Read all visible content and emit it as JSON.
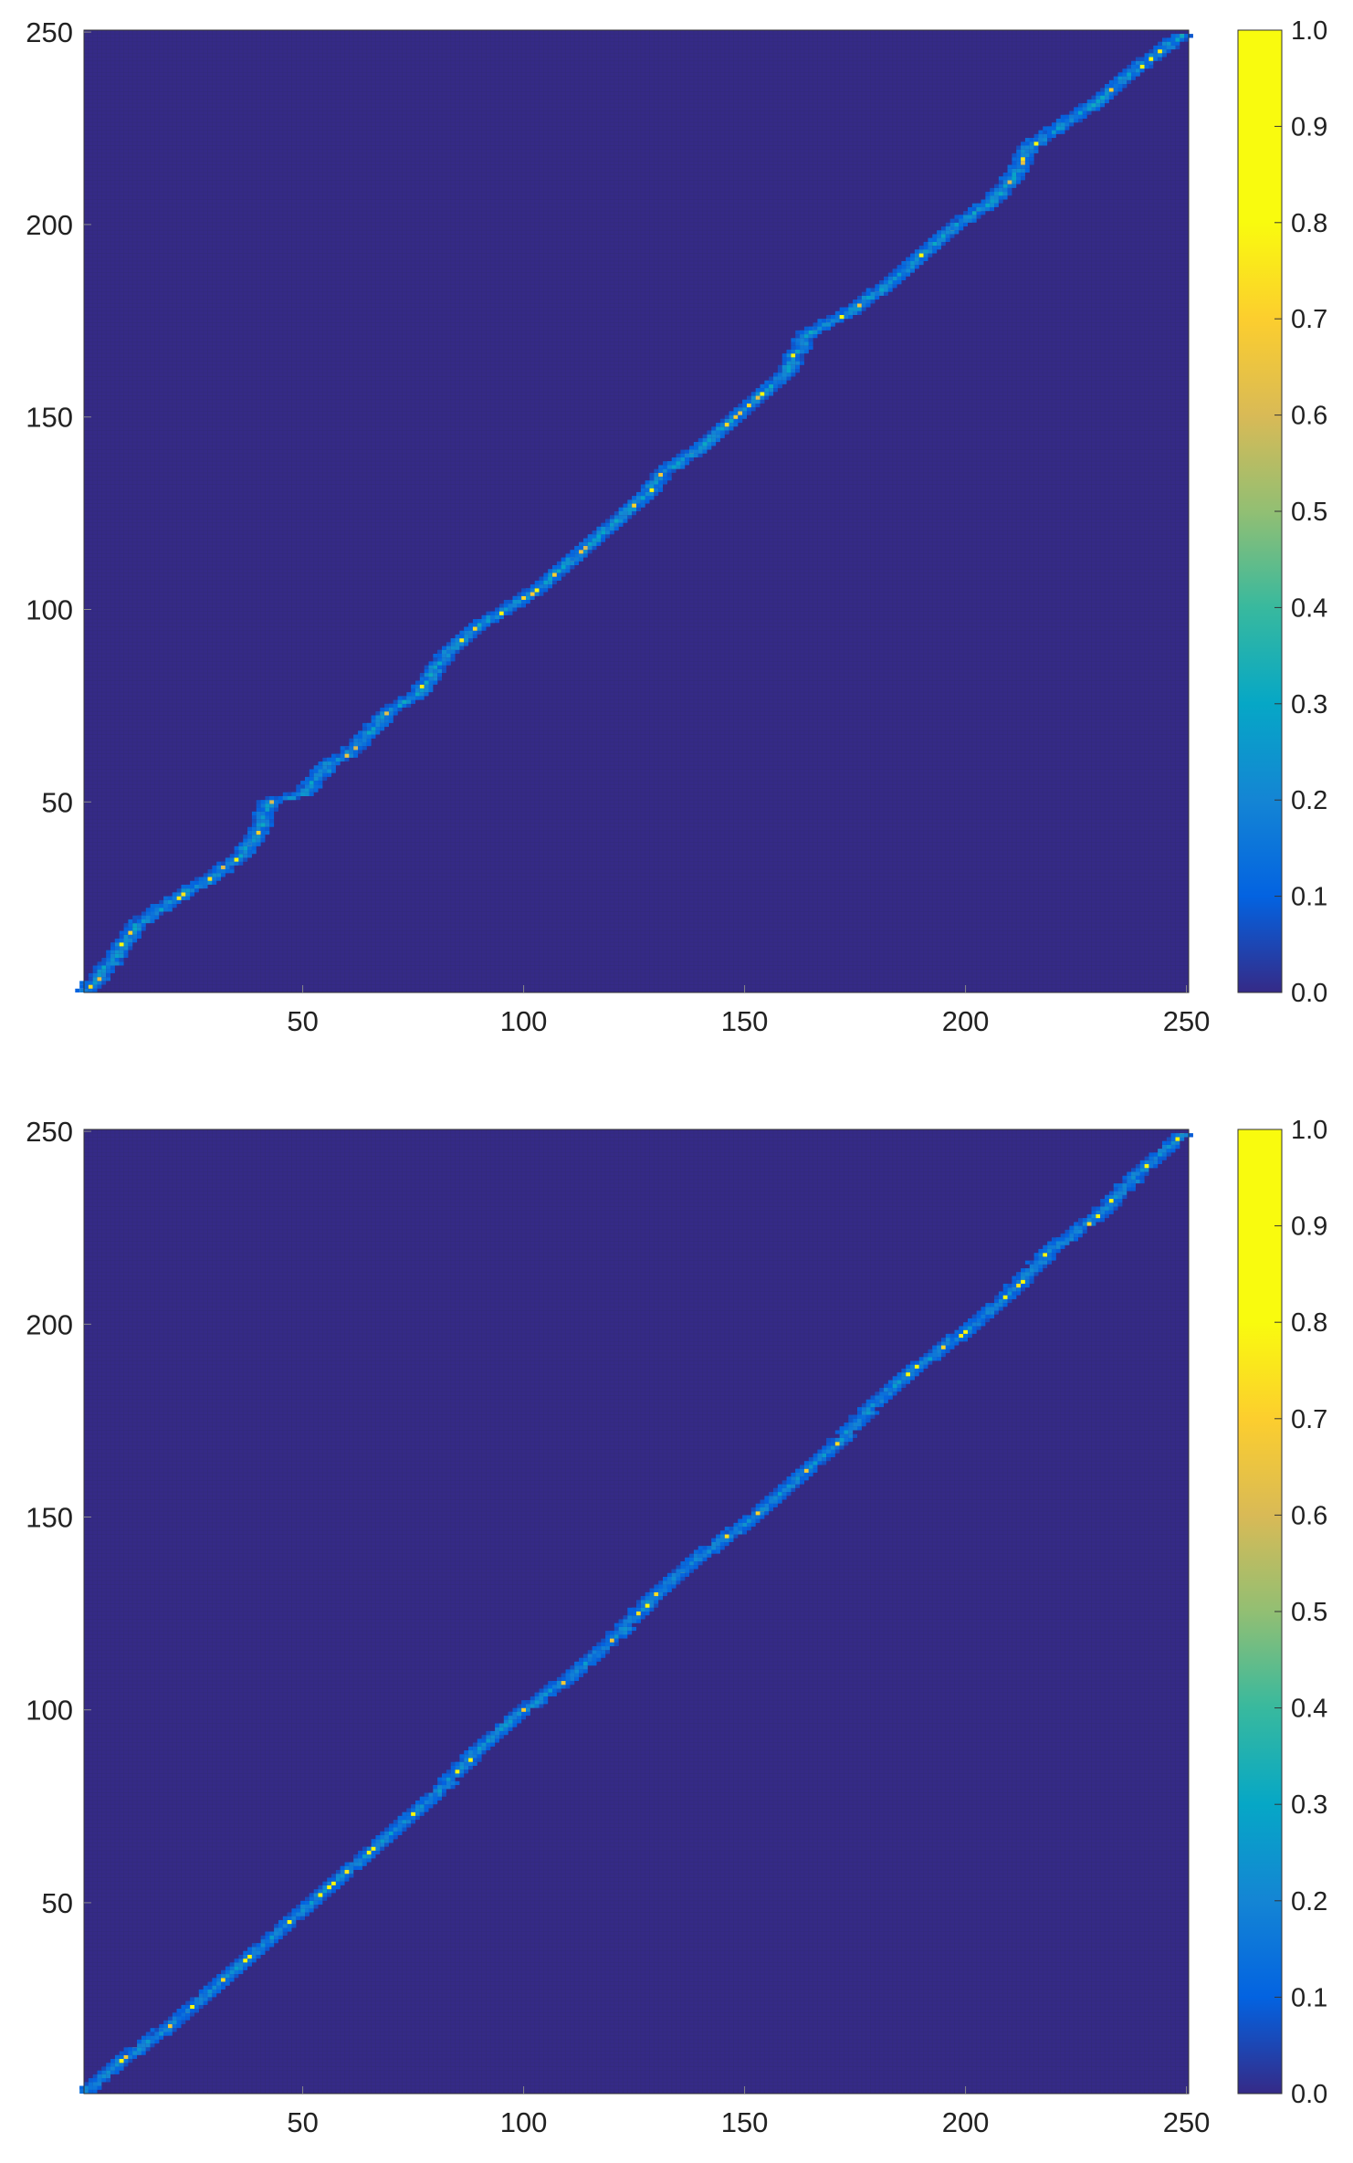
{
  "chart_data": [
    {
      "type": "heatmap",
      "title": "",
      "xlabel": "",
      "ylabel": "",
      "xlim": [
        1,
        250
      ],
      "ylim": [
        1,
        250
      ],
      "x_ticks": [
        50,
        100,
        150,
        200,
        250
      ],
      "y_ticks": [
        50,
        100,
        150,
        200,
        250
      ],
      "colorbar": {
        "min": 0.0,
        "max": 1.0,
        "ticks": [
          "0.0",
          "0.1",
          "0.2",
          "0.3",
          "0.4",
          "0.5",
          "0.6",
          "0.7",
          "0.8",
          "0.9",
          "1.0"
        ]
      },
      "colormap": "parula",
      "background_value": 0.0,
      "ridge": {
        "description": "staircase band of nonzero weights along the diagonal",
        "path": [
          [
            1,
            1
          ],
          [
            8,
            10
          ],
          [
            12,
            18
          ],
          [
            20,
            24
          ],
          [
            30,
            31
          ],
          [
            36,
            36
          ],
          [
            40,
            42
          ],
          [
            42,
            50
          ],
          [
            50,
            52
          ],
          [
            56,
            60
          ],
          [
            60,
            62
          ],
          [
            70,
            74
          ],
          [
            76,
            78
          ],
          [
            82,
            88
          ],
          [
            90,
            96
          ],
          [
            96,
            100
          ],
          [
            104,
            106
          ],
          [
            110,
            112
          ],
          [
            118,
            120
          ],
          [
            122,
            124
          ],
          [
            128,
            130
          ],
          [
            132,
            136
          ],
          [
            140,
            142
          ],
          [
            148,
            150
          ],
          [
            160,
            162
          ],
          [
            164,
            172
          ],
          [
            172,
            176
          ],
          [
            182,
            184
          ],
          [
            190,
            192
          ],
          [
            198,
            200
          ],
          [
            206,
            206
          ],
          [
            212,
            214
          ],
          [
            214,
            220
          ],
          [
            222,
            226
          ],
          [
            230,
            232
          ],
          [
            238,
            240
          ],
          [
            250,
            250
          ]
        ],
        "peak_value": 0.85,
        "typical_value": 0.25
      }
    },
    {
      "type": "heatmap",
      "title": "",
      "xlabel": "",
      "ylabel": "",
      "xlim": [
        1,
        250
      ],
      "ylim": [
        1,
        250
      ],
      "x_ticks": [
        50,
        100,
        150,
        200,
        250
      ],
      "y_ticks": [
        50,
        100,
        150,
        200,
        250
      ],
      "colorbar": {
        "min": 0.0,
        "max": 1.0,
        "ticks": [
          "0.0",
          "0.1",
          "0.2",
          "0.3",
          "0.4",
          "0.5",
          "0.6",
          "0.7",
          "0.8",
          "0.9",
          "1.0"
        ]
      },
      "colormap": "parula",
      "background_value": 0.0,
      "ridge": {
        "description": "smooth band of nonzero weights along the diagonal",
        "path": [
          [
            1,
            1
          ],
          [
            10,
            10
          ],
          [
            20,
            18
          ],
          [
            30,
            28
          ],
          [
            40,
            38
          ],
          [
            50,
            48
          ],
          [
            60,
            58
          ],
          [
            70,
            68
          ],
          [
            80,
            78
          ],
          [
            90,
            90
          ],
          [
            100,
            100
          ],
          [
            110,
            108
          ],
          [
            120,
            118
          ],
          [
            130,
            130
          ],
          [
            140,
            140
          ],
          [
            150,
            148
          ],
          [
            160,
            158
          ],
          [
            170,
            168
          ],
          [
            180,
            180
          ],
          [
            190,
            190
          ],
          [
            200,
            198
          ],
          [
            210,
            208
          ],
          [
            220,
            220
          ],
          [
            230,
            228
          ],
          [
            240,
            240
          ],
          [
            250,
            250
          ]
        ],
        "peak_value": 0.95,
        "typical_value": 0.22
      }
    }
  ]
}
